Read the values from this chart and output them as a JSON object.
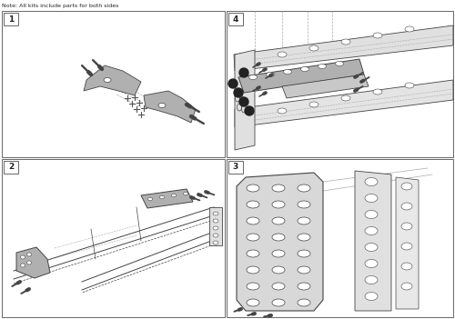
{
  "note": "Note: All kits include parts for both sides",
  "background_color": "#ffffff",
  "border_color": "#666666",
  "text_color": "#222222",
  "panel_labels": [
    "1",
    "2",
    "3",
    "4"
  ],
  "line_color": "#444444",
  "part_color": "#b0b0b0",
  "part_color2": "#c8c8c8",
  "dark_part_color": "#888888",
  "screw_color": "#333333",
  "dashed_line_color": "#aaaaaa",
  "light_gray": "#e0e0e0",
  "mid_gray": "#999999"
}
